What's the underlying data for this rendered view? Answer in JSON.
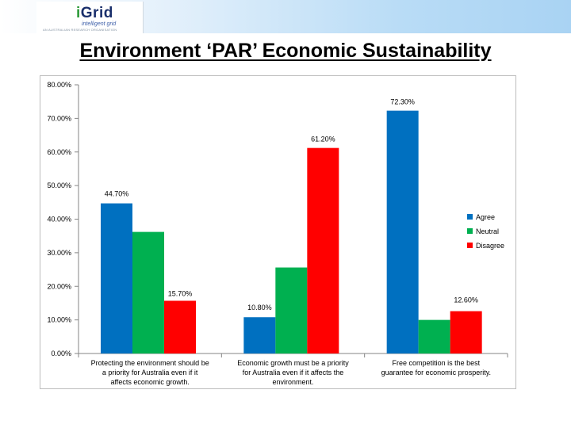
{
  "logo": {
    "name": "Grid",
    "name_prefix": "i",
    "subtitle": "intelligent grid",
    "tagline": "AN AUSTRALIAN RESEARCH ORGANISATION"
  },
  "title": "Environment ‘PAR’ Economic Sustainability",
  "colors": {
    "Agree": "#0070C0",
    "Neutral": "#00B050",
    "Disagree": "#FF0000"
  },
  "chart_data": {
    "type": "bar",
    "title": "Environment ‘PAR’ Economic Sustainability",
    "categories": [
      [
        "Protecting the environment should be",
        "a priority for Australia even if it",
        "affects economic growth."
      ],
      [
        "Economic growth must be a priority",
        "for Australia even if it affects the",
        "environment."
      ],
      [
        "Free competition is the best",
        "guarantee for economic prosperity."
      ]
    ],
    "series": [
      {
        "name": "Agree",
        "values": [
          44.7,
          10.8,
          72.3
        ]
      },
      {
        "name": "Neutral",
        "values": [
          36.2,
          25.6,
          10.0
        ]
      },
      {
        "name": "Disagree",
        "values": [
          15.7,
          61.2,
          12.6
        ]
      }
    ],
    "data_labels": [
      {
        "series": 0,
        "category": 0,
        "text": "44.70%"
      },
      {
        "series": 2,
        "category": 0,
        "text": "15.70%"
      },
      {
        "series": 0,
        "category": 1,
        "text": "10.80%"
      },
      {
        "series": 2,
        "category": 1,
        "text": "61.20%"
      },
      {
        "series": 0,
        "category": 2,
        "text": "72.30%"
      },
      {
        "series": 2,
        "category": 2,
        "text": "12.60%"
      }
    ],
    "ylim": [
      0,
      80
    ],
    "yticks": [
      0,
      10,
      20,
      30,
      40,
      50,
      60,
      70,
      80
    ],
    "ytick_labels": [
      "0.00%",
      "10.00%",
      "20.00%",
      "30.00%",
      "40.00%",
      "50.00%",
      "60.00%",
      "70.00%",
      "80.00%"
    ],
    "xlabel": "",
    "ylabel": "",
    "grid": false,
    "legend": {
      "position": "right",
      "entries": [
        "Agree",
        "Neutral",
        "Disagree"
      ]
    }
  }
}
